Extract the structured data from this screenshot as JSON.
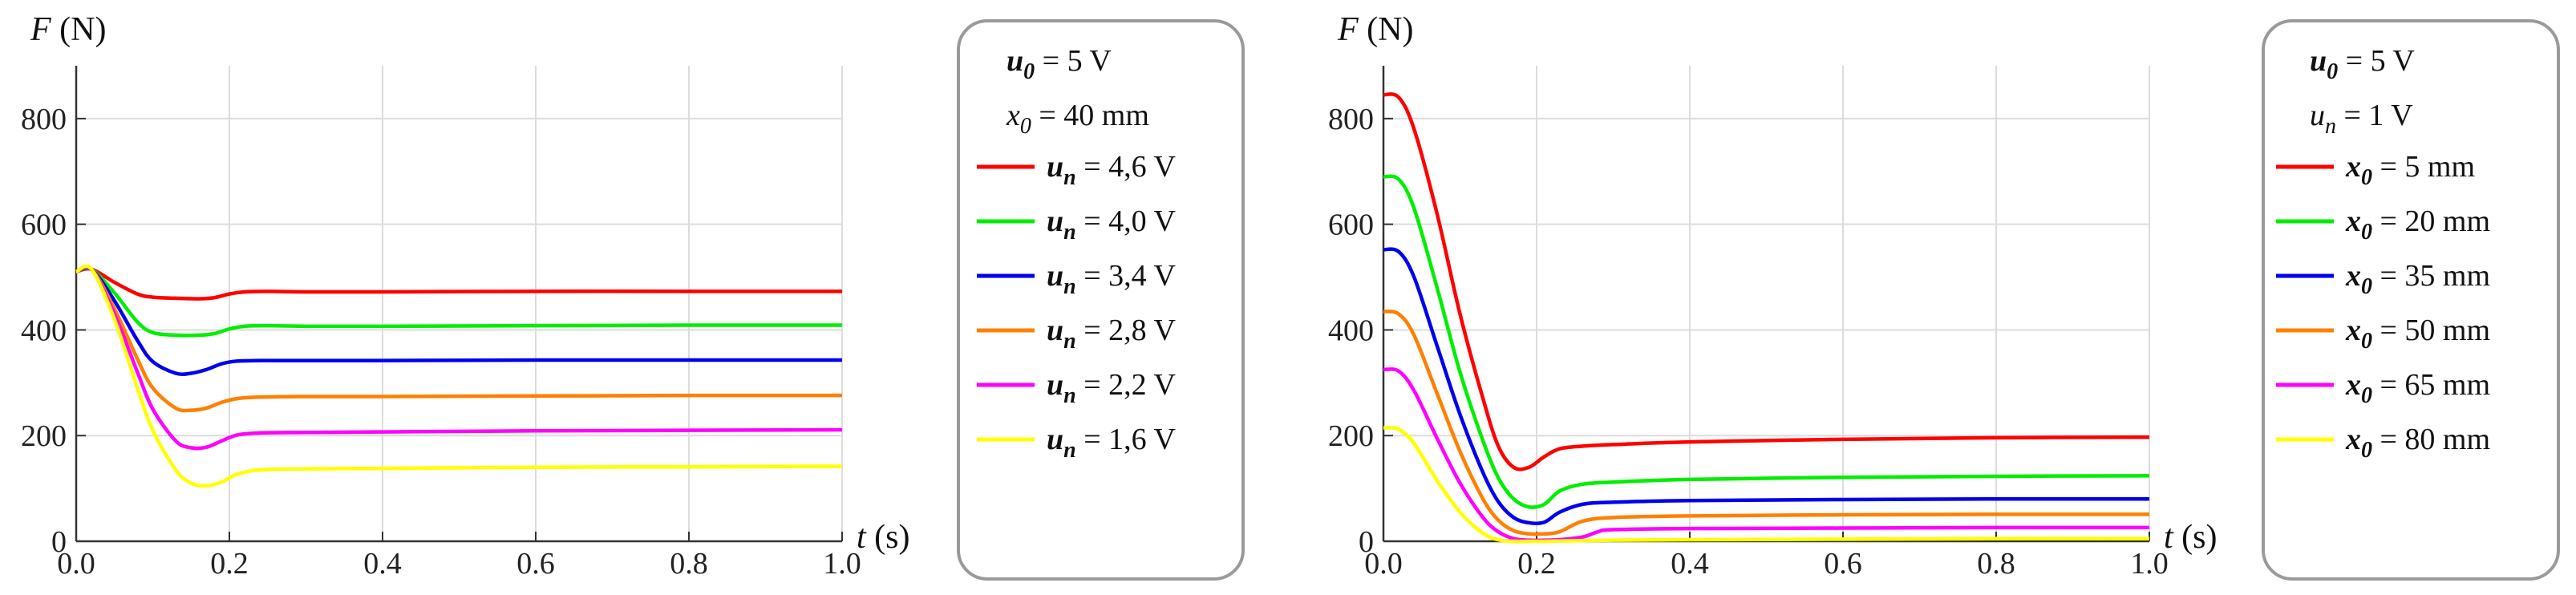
{
  "chart_data": [
    {
      "type": "line",
      "xlabel": "t (s)",
      "ylabel": "F (N)",
      "xlim": [
        0,
        1
      ],
      "ylim": [
        0,
        900
      ],
      "x_ticks": [
        "0.0",
        "0.2",
        "0.4",
        "0.6",
        "0.8",
        "1.0"
      ],
      "y_ticks": [
        "0",
        "200",
        "400",
        "600",
        "800"
      ],
      "legend_header": [
        "u0 = 5 V",
        "x0 = 40 mm"
      ],
      "series": [
        {
          "name": "un = 4,6 V",
          "var": "u",
          "sub": "n",
          "rhs": " = 4,6 V",
          "color": "#ff0000",
          "x": [
            0,
            0.02,
            0.05,
            0.08,
            0.1,
            0.13,
            0.16,
            0.18,
            0.2,
            0.22,
            0.25,
            0.3,
            0.4,
            0.6,
            0.8,
            1.0
          ],
          "y": [
            510,
            515,
            490,
            468,
            462,
            460,
            459,
            461,
            468,
            472,
            473,
            472,
            472,
            473,
            473,
            473
          ]
        },
        {
          "name": "un = 4,0 V",
          "var": "u",
          "sub": "n",
          "rhs": " = 4,0 V",
          "color": "#00ee00",
          "x": [
            0,
            0.02,
            0.05,
            0.08,
            0.1,
            0.13,
            0.16,
            0.18,
            0.2,
            0.22,
            0.25,
            0.3,
            0.4,
            0.6,
            0.8,
            1.0
          ],
          "y": [
            510,
            515,
            470,
            415,
            395,
            390,
            390,
            393,
            402,
            407,
            408,
            407,
            407,
            408,
            409,
            409
          ]
        },
        {
          "name": "un = 3,4 V",
          "var": "u",
          "sub": "n",
          "rhs": " = 3,4 V",
          "color": "#0000ee",
          "x": [
            0,
            0.02,
            0.05,
            0.08,
            0.1,
            0.13,
            0.15,
            0.17,
            0.19,
            0.21,
            0.24,
            0.3,
            0.4,
            0.6,
            0.8,
            1.0
          ],
          "y": [
            510,
            515,
            455,
            380,
            340,
            318,
            318,
            325,
            336,
            341,
            342,
            342,
            342,
            343,
            343,
            343
          ]
        },
        {
          "name": "un = 2,8 V",
          "var": "u",
          "sub": "n",
          "rhs": " = 2,8 V",
          "color": "#ff8000",
          "x": [
            0,
            0.02,
            0.05,
            0.08,
            0.1,
            0.13,
            0.15,
            0.17,
            0.19,
            0.21,
            0.24,
            0.3,
            0.4,
            0.6,
            0.8,
            1.0
          ],
          "y": [
            510,
            515,
            440,
            345,
            290,
            252,
            248,
            252,
            263,
            270,
            273,
            274,
            274,
            275,
            276,
            276
          ]
        },
        {
          "name": "un = 2,2 V",
          "var": "u",
          "sub": "n",
          "rhs": " = 2,2 V",
          "color": "#ff00ff",
          "x": [
            0,
            0.02,
            0.05,
            0.08,
            0.1,
            0.13,
            0.15,
            0.17,
            0.19,
            0.21,
            0.24,
            0.3,
            0.4,
            0.6,
            0.8,
            1.0
          ],
          "y": [
            510,
            515,
            430,
            320,
            250,
            190,
            177,
            178,
            190,
            201,
            205,
            206,
            207,
            209,
            210,
            211
          ]
        },
        {
          "name": "un = 1,6 V",
          "var": "u",
          "sub": "n",
          "rhs": " = 1,6 V",
          "color": "#ffff00",
          "x": [
            0,
            0.02,
            0.05,
            0.08,
            0.1,
            0.13,
            0.15,
            0.17,
            0.19,
            0.21,
            0.24,
            0.3,
            0.4,
            0.6,
            0.8,
            1.0
          ],
          "y": [
            510,
            515,
            420,
            290,
            210,
            135,
            110,
            105,
            112,
            127,
            135,
            137,
            138,
            140,
            141,
            142
          ]
        }
      ]
    },
    {
      "type": "line",
      "xlabel": "t (s)",
      "ylabel": "F (N)",
      "xlim": [
        0,
        1
      ],
      "ylim": [
        0,
        900
      ],
      "x_ticks": [
        "0.0",
        "0.2",
        "0.4",
        "0.6",
        "0.8",
        "1.0"
      ],
      "y_ticks": [
        "0",
        "200",
        "400",
        "600",
        "800"
      ],
      "legend_header": [
        "u0 = 5 V",
        "un = 1 V"
      ],
      "series": [
        {
          "name": "x0 = 5 mm",
          "var": "x",
          "sub": "0",
          "rhs": " = 5 mm",
          "color": "#ff0000",
          "x": [
            0,
            0.02,
            0.04,
            0.07,
            0.1,
            0.13,
            0.15,
            0.17,
            0.19,
            0.21,
            0.23,
            0.26,
            0.3,
            0.4,
            0.6,
            0.8,
            1.0
          ],
          "y": [
            845,
            840,
            780,
            620,
            430,
            270,
            180,
            140,
            140,
            160,
            175,
            180,
            183,
            188,
            193,
            196,
            197
          ]
        },
        {
          "name": "x0 = 20 mm",
          "var": "x",
          "sub": "0",
          "rhs": " = 20 mm",
          "color": "#00ee00",
          "x": [
            0,
            0.02,
            0.04,
            0.07,
            0.1,
            0.13,
            0.15,
            0.17,
            0.19,
            0.21,
            0.23,
            0.26,
            0.3,
            0.4,
            0.6,
            0.8,
            1.0
          ],
          "y": [
            690,
            685,
            630,
            480,
            320,
            190,
            120,
            80,
            65,
            70,
            95,
            108,
            112,
            117,
            121,
            123,
            124
          ]
        },
        {
          "name": "x0 = 35 mm",
          "var": "x",
          "sub": "0",
          "rhs": " = 35 mm",
          "color": "#0000ee",
          "x": [
            0,
            0.02,
            0.04,
            0.07,
            0.1,
            0.13,
            0.15,
            0.17,
            0.19,
            0.21,
            0.23,
            0.26,
            0.3,
            0.4,
            0.6,
            0.8,
            1.0
          ],
          "y": [
            552,
            548,
            500,
            370,
            240,
            130,
            75,
            45,
            35,
            36,
            55,
            70,
            74,
            77,
            79,
            80,
            80
          ]
        },
        {
          "name": "x0 = 50 mm",
          "var": "x",
          "sub": "0",
          "rhs": " = 50 mm",
          "color": "#ff8000",
          "x": [
            0,
            0.02,
            0.04,
            0.07,
            0.1,
            0.13,
            0.15,
            0.17,
            0.19,
            0.21,
            0.23,
            0.26,
            0.3,
            0.4,
            0.6,
            0.8,
            1.0
          ],
          "y": [
            435,
            430,
            390,
            280,
            170,
            80,
            40,
            20,
            14,
            14,
            18,
            38,
            45,
            48,
            50,
            51,
            51
          ]
        },
        {
          "name": "x0 = 65 mm",
          "var": "x",
          "sub": "0",
          "rhs": " = 65 mm",
          "color": "#ff00ff",
          "x": [
            0,
            0.02,
            0.04,
            0.07,
            0.1,
            0.13,
            0.15,
            0.17,
            0.19,
            0.21,
            0.23,
            0.26,
            0.28,
            0.3,
            0.4,
            0.6,
            0.8,
            1.0
          ],
          "y": [
            325,
            322,
            285,
            195,
            110,
            45,
            18,
            5,
            2,
            2,
            3,
            8,
            18,
            22,
            24,
            25,
            26,
            26
          ]
        },
        {
          "name": "x0 = 80 mm",
          "var": "x",
          "sub": "0",
          "rhs": " = 80 mm",
          "color": "#ffff00",
          "x": [
            0,
            0.02,
            0.04,
            0.07,
            0.1,
            0.13,
            0.15,
            0.17,
            0.19,
            0.21,
            0.25,
            0.3,
            0.4,
            0.6,
            0.8,
            1.0
          ],
          "y": [
            215,
            212,
            185,
            115,
            55,
            15,
            3,
            0,
            0,
            0,
            1,
            2,
            3,
            4,
            5,
            5
          ]
        }
      ]
    }
  ]
}
